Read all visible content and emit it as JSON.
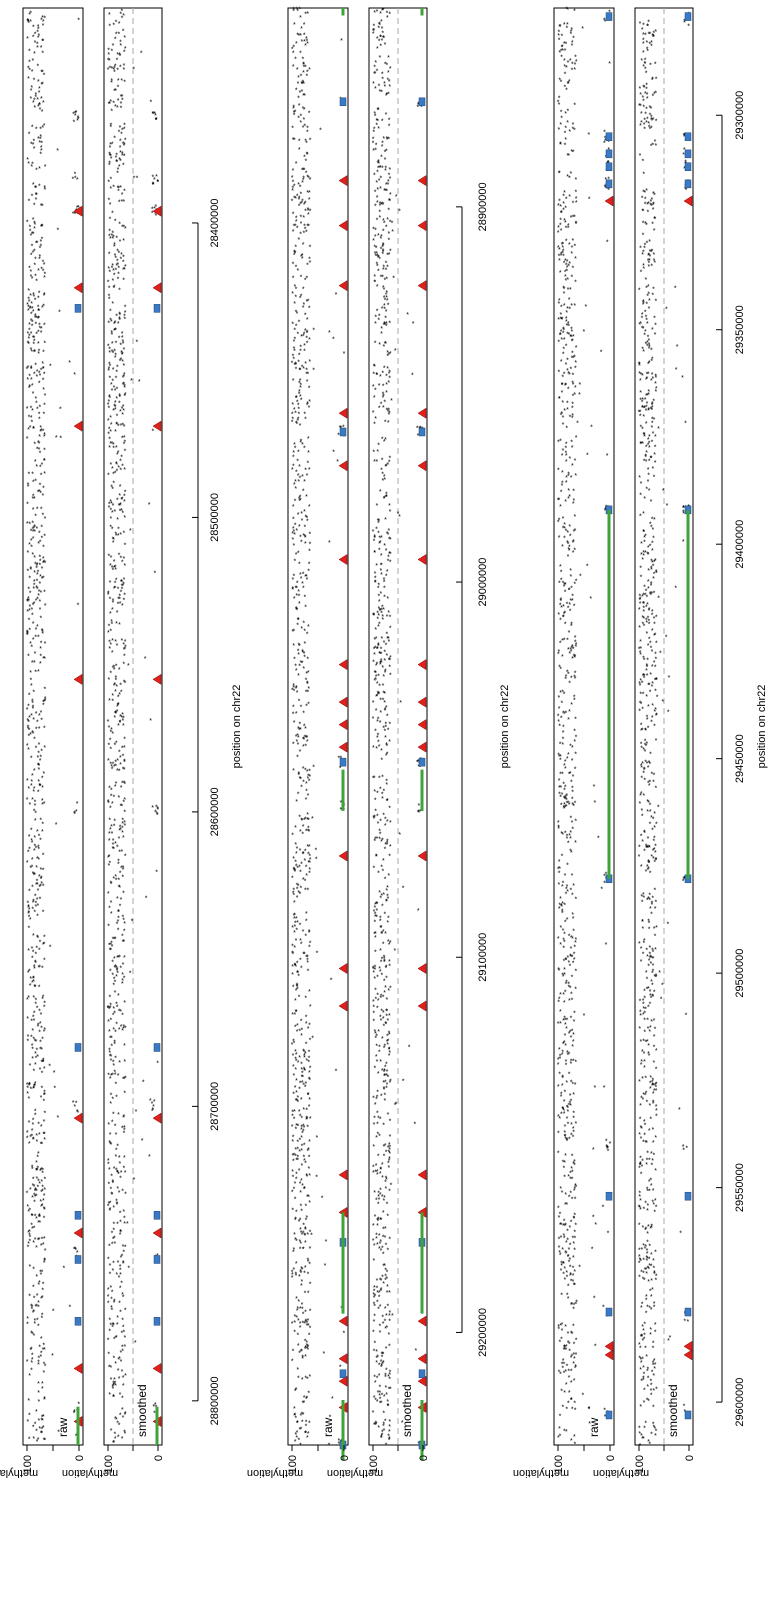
{
  "chart_data": [
    {
      "type": "scatter",
      "xlabel": "position on chr22",
      "ylabel": "methylation",
      "ylim": [
        0,
        100
      ],
      "y_ticks": [
        "0",
        "100"
      ],
      "xlim": [
        28327000,
        28815000
      ],
      "x_ticks": [
        "28400000",
        "28500000",
        "28600000",
        "28700000",
        "28800000"
      ],
      "panels": [
        {
          "label": "raw",
          "threshold": null
        },
        {
          "label": "smoothed",
          "threshold": 50
        }
      ],
      "points": {
        "unmethylated": [
          28364000,
          28385000,
          28396000,
          28600000,
          28700000,
          28750000,
          28802000
        ],
        "density_seed": 17
      },
      "markers": {
        "triangle": [
          28396000,
          28422000,
          28469000,
          28555000,
          28704000,
          28743000,
          28789000,
          28807000
        ],
        "square": [
          28429000,
          28680000,
          28737000,
          28752000,
          28773000
        ],
        "segments": [
          [
            28802000,
            28815000
          ]
        ]
      }
    },
    {
      "type": "scatter",
      "xlabel": "position on chr22",
      "ylabel": "methylation",
      "ylim": [
        0,
        100
      ],
      "y_ticks": [
        "0",
        "100"
      ],
      "xlim": [
        28847000,
        29230000
      ],
      "x_ticks": [
        "28900000",
        "29000000",
        "29100000",
        "29200000"
      ],
      "panels": [
        {
          "label": "raw",
          "threshold": null
        },
        {
          "label": "smoothed",
          "threshold": 50
        }
      ],
      "points": {
        "unmethylated": [
          28872000,
          28960000,
          29048000,
          29060000,
          29230000
        ],
        "density_seed": 29
      },
      "markers": {
        "triangle": [
          28893000,
          28905000,
          28921000,
          28955000,
          28969000,
          28994000,
          29022000,
          29032000,
          29038000,
          29044000,
          29073000,
          29103000,
          29113000,
          29158000,
          29168000,
          29197000,
          29207000,
          29213000,
          29220000
        ],
        "square": [
          28872000,
          28960000,
          29048000,
          29176000,
          29211000,
          29230000
        ],
        "segments": [
          [
            28847000,
            28849000
          ],
          [
            29050000,
            29061000
          ],
          [
            29168000,
            29195000
          ],
          [
            29218000,
            29234000
          ]
        ]
      }
    },
    {
      "type": "scatter",
      "xlabel": "position on chr22",
      "ylabel": "methylation",
      "ylim": [
        0,
        100
      ],
      "y_ticks": [
        "0",
        "100"
      ],
      "xlim": [
        29275000,
        29610000
      ],
      "x_ticks": [
        "29300000",
        "29350000",
        "29400000",
        "29450000",
        "29500000",
        "29550000",
        "29600000"
      ],
      "panels": [
        {
          "label": "raw",
          "threshold": null
        },
        {
          "label": "smoothed",
          "threshold": 50
        }
      ],
      "points": {
        "unmethylated": [
          29277000,
          29305000,
          29309000,
          29312000,
          29316000,
          29392000,
          29478000,
          29540000,
          29580000,
          29603000
        ],
        "density_seed": 41
      },
      "markers": {
        "triangle": [
          29320000,
          29587000,
          29589000
        ],
        "square": [
          29277000,
          29305000,
          29309000,
          29312000,
          29316000,
          29392000,
          29478000,
          29552000,
          29579000,
          29603000
        ],
        "segments": [
          [
            29392000,
            29478000
          ]
        ]
      }
    }
  ]
}
